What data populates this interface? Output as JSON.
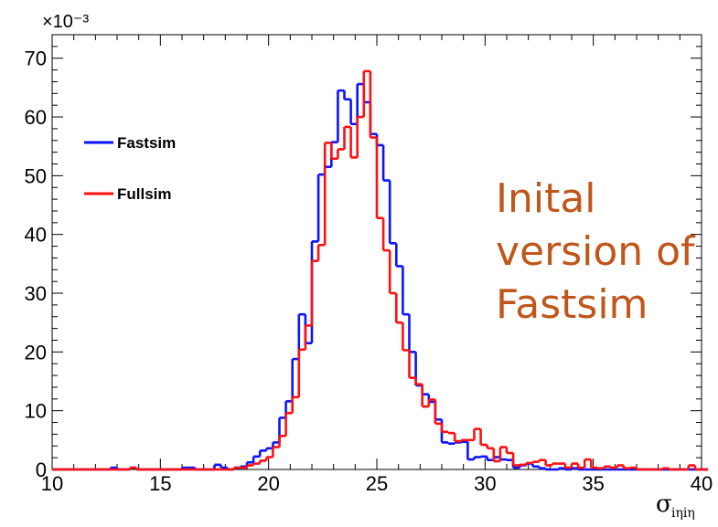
{
  "chart_data": {
    "type": "histogram",
    "xlabel": {
      "main": "σ",
      "sub": "iηiη"
    },
    "ylabel": "",
    "y_multiplier": "×10⁻³",
    "xlim": [
      10,
      40
    ],
    "ylim": [
      0,
      74
    ],
    "x_ticks": [
      10,
      15,
      20,
      25,
      30,
      35,
      40
    ],
    "y_ticks": [
      0,
      10,
      20,
      30,
      40,
      50,
      60,
      70
    ],
    "bin_edges_start": 10,
    "bin_width": 0.3,
    "annotation": [
      "Inital",
      "version of",
      "Fastsim"
    ],
    "legend_position": "left",
    "series": [
      {
        "name": "Fastsim",
        "color": "#0a14ff",
        "values": [
          0,
          0,
          0,
          0,
          0,
          0,
          0,
          0,
          0,
          0.3,
          0,
          0,
          0.3,
          0,
          0,
          0,
          0,
          0,
          0,
          0,
          0.3,
          0.3,
          0,
          0,
          0,
          0.8,
          0.3,
          0,
          0.3,
          0.5,
          1.2,
          2.2,
          3.2,
          3.6,
          4.6,
          8.8,
          11.6,
          18.8,
          26.4,
          21.5,
          38.8,
          50.2,
          51.5,
          55.7,
          64.5,
          63.0,
          58.8,
          65.6,
          62.5,
          57.1,
          55.2,
          49.2,
          38.5,
          34.6,
          26.4,
          20.0,
          14.3,
          12.8,
          11.5,
          8.5,
          4.6,
          4.4,
          4.6,
          4.7,
          1.7,
          2.1,
          2.2,
          1.6,
          2.1,
          1.7,
          1.6,
          0.3,
          0.7,
          1.0,
          0.5,
          0.2,
          0,
          0,
          0.2,
          0,
          0.2,
          0,
          0,
          0,
          0,
          0,
          0,
          0,
          0,
          0,
          0,
          0,
          0,
          0,
          0,
          0,
          0,
          0,
          0,
          0,
          0
        ]
      },
      {
        "name": "Fullsim",
        "color": "#ff1010",
        "values": [
          0,
          0,
          0,
          0,
          0,
          0,
          0,
          0,
          0,
          0,
          0,
          0,
          0.3,
          0,
          0,
          0,
          0,
          0,
          0,
          0,
          0,
          0,
          0,
          0,
          0,
          0,
          0,
          0,
          0.3,
          0.3,
          0.7,
          1.0,
          1.5,
          2.1,
          3.8,
          5.7,
          9.6,
          12.3,
          20.4,
          24.5,
          35.5,
          38.2,
          55.6,
          52.9,
          54.5,
          58.3,
          53.1,
          60.0,
          67.8,
          56.5,
          42.8,
          37.3,
          30.0,
          25.0,
          20.3,
          15.6,
          14.5,
          10.7,
          11.9,
          7.8,
          6.4,
          6.2,
          4.8,
          5.0,
          5.0,
          6.9,
          4.2,
          3.6,
          1.4,
          3.8,
          2.8,
          0.7,
          0.8,
          1.1,
          1.3,
          1.6,
          0.7,
          1.0,
          1.0,
          0.3,
          1.0,
          0.3,
          1.7,
          0.3,
          0.2,
          0.5,
          0.3,
          0.7,
          0.2,
          0.3,
          0,
          0,
          0,
          0,
          0.2,
          0,
          0,
          0,
          0.7,
          0,
          0
        ]
      }
    ]
  }
}
